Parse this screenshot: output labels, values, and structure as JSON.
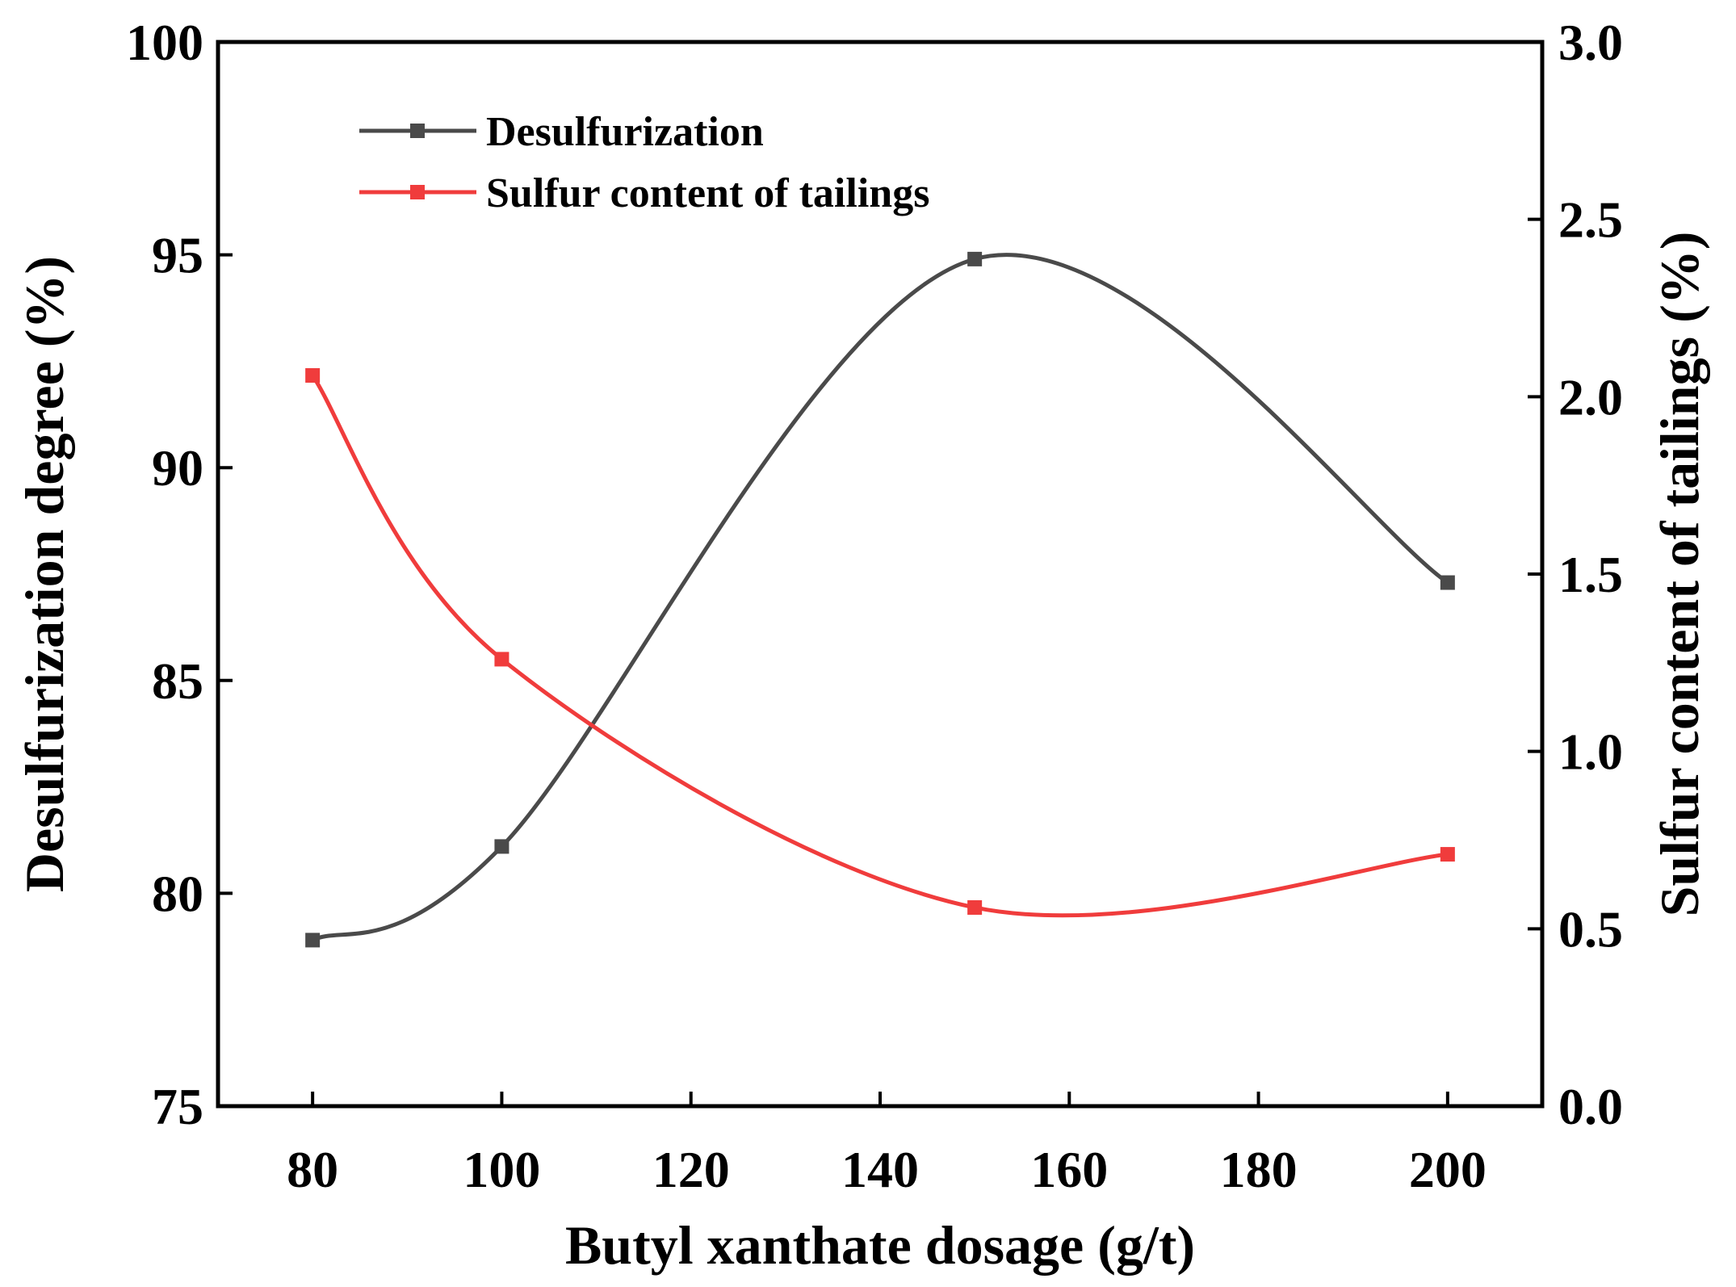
{
  "chart_data": {
    "type": "line",
    "title": "",
    "xlabel": "Butyl xanthate dosage (g/t)",
    "ylabel": "Desulfurization degree (%)",
    "y2label": "Sulfur content of tailings (%)",
    "xlim": [
      70,
      210
    ],
    "ylim": [
      75,
      100
    ],
    "y2lim": [
      0.0,
      3.0
    ],
    "xticks": [
      80,
      100,
      120,
      140,
      160,
      180,
      200
    ],
    "xtick_labels": [
      "80",
      "100",
      "120",
      "140",
      "160",
      "180",
      "200"
    ],
    "yticks": [
      75,
      80,
      85,
      90,
      95,
      100
    ],
    "ytick_labels": [
      "75",
      "80",
      "85",
      "90",
      "95",
      "100"
    ],
    "y2ticks": [
      0.0,
      0.5,
      1.0,
      1.5,
      2.0,
      2.5,
      3.0
    ],
    "y2tick_labels": [
      "0.0",
      "0.5",
      "1.0",
      "1.5",
      "2.0",
      "2.5",
      "3.0"
    ],
    "grid": false,
    "legend_position": "top-left",
    "x": [
      80,
      100,
      150,
      200
    ],
    "series": [
      {
        "name": "Desulfurization",
        "axis": "left",
        "color": "#4a4a4a",
        "values": [
          78.9,
          81.1,
          94.9,
          87.3
        ]
      },
      {
        "name": "Sulfur content of tailings",
        "axis": "right",
        "color": "#f03c3c",
        "values": [
          2.06,
          1.26,
          0.56,
          0.71
        ]
      }
    ]
  }
}
